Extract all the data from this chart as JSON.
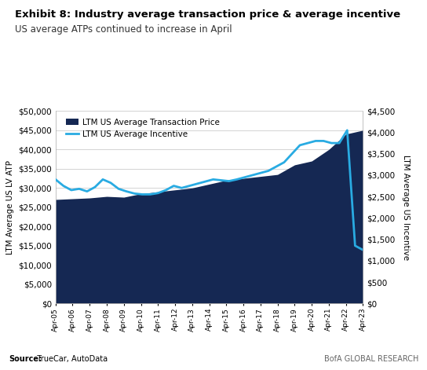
{
  "title": "Exhibit 8: Industry average transaction price & average incentive",
  "subtitle": "US average ATPs continued to increase in April",
  "ylabel_left": "LTM Average US LV ATP",
  "ylabel_right": "LTM Average US Incentive",
  "source_bold": "Source:",
  "source_normal": "  TrueCar, AutoData",
  "branding": "BofA GLOBAL RESEARCH",
  "years": [
    "Apr-05",
    "Apr-06",
    "Apr-07",
    "Apr-08",
    "Apr-09",
    "Apr-10",
    "Apr-11",
    "Apr-12",
    "Apr-13",
    "Apr-14",
    "Apr-15",
    "Apr-16",
    "Apr-17",
    "Apr-18",
    "Apr-19",
    "Apr-20",
    "Apr-21",
    "Apr-22",
    "Apr-23"
  ],
  "atp": [
    27000,
    27200,
    27400,
    27800,
    27600,
    28500,
    29000,
    29500,
    30000,
    31000,
    32000,
    32500,
    33000,
    33500,
    36000,
    37000,
    40000,
    44000,
    45000
  ],
  "incentive": [
    2900,
    2750,
    2650,
    2680,
    2620,
    2720,
    2900,
    2820,
    2680,
    2620,
    2570,
    2550,
    2550,
    2580,
    2650,
    2750,
    2700,
    2750,
    2800,
    2850,
    2900,
    2880,
    2860,
    2900,
    2950,
    3000,
    3050,
    3100,
    3200,
    3300,
    3500,
    3700,
    3750,
    3800,
    3800,
    3750,
    3750,
    4050,
    1350,
    1250
  ],
  "atp_color": "#152853",
  "incentive_color": "#29abe2",
  "legend_atp": "LTM US Average Transaction Price",
  "legend_incentive": "LTM US Average Incentive",
  "ylim_left": [
    0,
    50000
  ],
  "ylim_right": [
    0,
    4500
  ],
  "background_color": "#ffffff",
  "title_bar_color": "#2255a4",
  "grid_color": "#cccccc"
}
